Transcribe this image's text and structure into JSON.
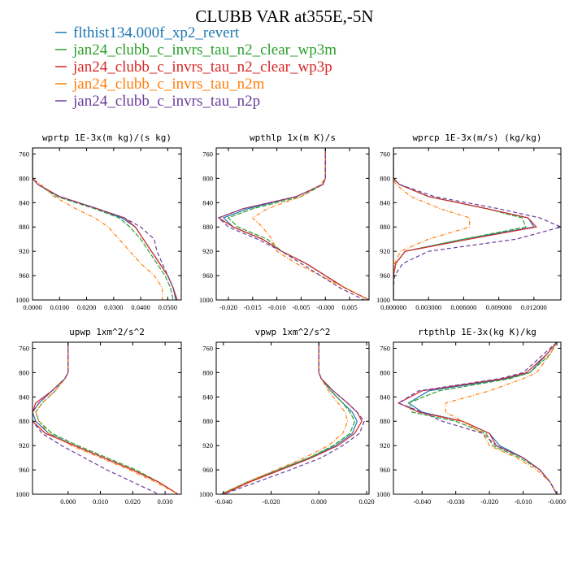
{
  "figure": {
    "title": "CLUBB VAR at355E,-5N",
    "legend": [
      {
        "name": "flthist134.000f_xp2_revert",
        "color": "#1f77b4",
        "dash": ""
      },
      {
        "name": "jan24_clubb_c_invrs_tau_n2_clear_wp3m",
        "color": "#2ca02c",
        "dash": "6,2"
      },
      {
        "name": "jan24_clubb_c_invrs_tau_n2_clear_wp3p",
        "color": "#d62728",
        "dash": ""
      },
      {
        "name": "jan24_clubb_c_invrs_tau_n2m",
        "color": "#ff7f0e",
        "dash": "5,2,1,2"
      },
      {
        "name": "jan24_clubb_c_invrs_tau_n2p",
        "color": "#6a3d9a",
        "dash": "5,3"
      }
    ]
  },
  "chart_data": [
    {
      "type": "line",
      "title": "wprtp  1E-3x(m kg)/(s kg)",
      "xlim": [
        0.0,
        0.055
      ],
      "ylim": [
        1000,
        750
      ],
      "xticks": [
        0.0,
        0.01,
        0.02,
        0.03,
        0.04,
        0.05
      ],
      "xtick_labels": [
        "0.0000",
        "0.0100",
        "0.0200",
        "0.0300",
        "0.0400",
        "0.0500"
      ],
      "yticks": [
        760,
        800,
        840,
        880,
        920,
        960,
        1000
      ],
      "ytick_labels": [
        "760",
        "800",
        "840",
        "880",
        "920",
        "960",
        "1000"
      ],
      "y": [
        750,
        800,
        810,
        830,
        850,
        865,
        880,
        900,
        920,
        940,
        960,
        980,
        1000
      ],
      "series": [
        {
          "values": [
            0.0,
            0.0,
            0.002,
            0.01,
            0.024,
            0.033,
            0.038,
            0.041,
            0.044,
            0.047,
            0.05,
            0.052,
            0.053
          ]
        },
        {
          "values": [
            0.0,
            0.0,
            0.002,
            0.009,
            0.023,
            0.032,
            0.036,
            0.04,
            0.043,
            0.046,
            0.049,
            0.051,
            0.052
          ]
        },
        {
          "values": [
            0.0,
            0.0,
            0.002,
            0.01,
            0.024,
            0.034,
            0.038,
            0.041,
            0.044,
            0.047,
            0.05,
            0.052,
            0.0535
          ]
        },
        {
          "values": [
            0.0,
            0.0,
            0.003,
            0.008,
            0.016,
            0.023,
            0.028,
            0.032,
            0.036,
            0.04,
            0.045,
            0.048,
            0.048
          ]
        },
        {
          "values": [
            0.0,
            0.0,
            0.002,
            0.01,
            0.024,
            0.034,
            0.04,
            0.045,
            0.046,
            0.048,
            0.05,
            0.052,
            0.053
          ]
        }
      ]
    },
    {
      "type": "line",
      "title": "wpthlp  1x(m K)/s",
      "xlim": [
        -0.0225,
        0.009
      ],
      "ylim": [
        1000,
        750
      ],
      "xticks": [
        -0.02,
        -0.015,
        -0.01,
        -0.005,
        0.0,
        0.005
      ],
      "xtick_labels": [
        "-0.020",
        "-0.015",
        "-0.010",
        "-0.005",
        "-0.000",
        "0.005"
      ],
      "yticks": [
        760,
        800,
        840,
        880,
        920,
        960,
        1000
      ],
      "ytick_labels": [
        "760",
        "800",
        "840",
        "880",
        "920",
        "960",
        "1000"
      ],
      "y": [
        750,
        800,
        810,
        830,
        850,
        865,
        880,
        900,
        920,
        940,
        960,
        980,
        1000
      ],
      "series": [
        {
          "values": [
            0.0,
            0.0,
            -0.0005,
            -0.006,
            -0.016,
            -0.021,
            -0.019,
            -0.013,
            -0.009,
            -0.004,
            0.0,
            0.004,
            0.009
          ]
        },
        {
          "values": [
            0.0,
            0.0,
            -0.0005,
            -0.005,
            -0.015,
            -0.02,
            -0.018,
            -0.012,
            -0.009,
            -0.004,
            0.0,
            0.004,
            0.009
          ]
        },
        {
          "values": [
            0.0,
            0.0,
            -0.0005,
            -0.006,
            -0.017,
            -0.022,
            -0.019,
            -0.013,
            -0.009,
            -0.004,
            0.0,
            0.004,
            0.009
          ]
        },
        {
          "values": [
            0.0,
            0.0,
            -0.001,
            -0.005,
            -0.012,
            -0.015,
            -0.013,
            -0.011,
            -0.01,
            -0.006,
            -0.001,
            0.004,
            0.009
          ]
        },
        {
          "values": [
            0.0,
            0.0,
            -0.0005,
            -0.006,
            -0.017,
            -0.022,
            -0.02,
            -0.014,
            -0.009,
            -0.005,
            -0.001,
            0.003,
            0.008
          ]
        }
      ]
    },
    {
      "type": "line",
      "title": "wprcp  1E-3x(m/s) (kg/kg)",
      "xlim": [
        0.0,
        0.0143
      ],
      "ylim": [
        1000,
        750
      ],
      "xticks": [
        0.0,
        0.003,
        0.006,
        0.009,
        0.012
      ],
      "xtick_labels": [
        "0.000000",
        "0.003000",
        "0.006000",
        "0.009000",
        "0.012000"
      ],
      "yticks": [
        760,
        800,
        840,
        880,
        920,
        960,
        1000
      ],
      "ytick_labels": [
        "760",
        "800",
        "840",
        "880",
        "920",
        "960",
        "1000"
      ],
      "y": [
        750,
        800,
        810,
        830,
        850,
        865,
        880,
        900,
        920,
        940,
        960,
        980,
        1000
      ],
      "series": [
        {
          "values": [
            0.0,
            0.0,
            0.0005,
            0.003,
            0.008,
            0.0115,
            0.012,
            0.006,
            0.001,
            0.0002,
            0.0,
            0.0,
            0.0
          ]
        },
        {
          "values": [
            0.0,
            0.0,
            0.0005,
            0.003,
            0.008,
            0.011,
            0.0113,
            0.006,
            0.001,
            0.0002,
            0.0,
            0.0,
            0.0
          ]
        },
        {
          "values": [
            0.0,
            0.0,
            0.0005,
            0.003,
            0.008,
            0.0115,
            0.0122,
            0.0065,
            0.001,
            0.0002,
            0.0,
            0.0,
            0.0
          ]
        },
        {
          "values": [
            0.0,
            0.0,
            0.0002,
            0.0015,
            0.004,
            0.0065,
            0.0065,
            0.003,
            0.0006,
            0.0001,
            0.0,
            0.0,
            0.0
          ]
        },
        {
          "values": [
            0.0,
            0.0,
            0.0005,
            0.0035,
            0.009,
            0.0125,
            0.0143,
            0.0105,
            0.003,
            0.0008,
            0.0001,
            0.0,
            0.0
          ]
        }
      ]
    },
    {
      "type": "line",
      "title": "upwp  1xm^2/s^2",
      "xlim": [
        -0.011,
        0.035
      ],
      "ylim": [
        1000,
        750
      ],
      "xticks": [
        0.0,
        0.01,
        0.02,
        0.03
      ],
      "xtick_labels": [
        "0.000",
        "0.010",
        "0.020",
        "0.030"
      ],
      "yticks": [
        760,
        800,
        840,
        880,
        920,
        960,
        1000
      ],
      "ytick_labels": [
        "760",
        "800",
        "840",
        "880",
        "920",
        "960",
        "1000"
      ],
      "y": [
        750,
        800,
        810,
        830,
        850,
        865,
        880,
        900,
        920,
        940,
        960,
        980,
        1000
      ],
      "series": [
        {
          "values": [
            0.0,
            0.0,
            -0.001,
            -0.005,
            -0.009,
            -0.011,
            -0.01,
            -0.006,
            0.002,
            0.011,
            0.02,
            0.028,
            0.034
          ]
        },
        {
          "values": [
            0.0,
            0.0,
            -0.001,
            -0.004,
            -0.008,
            -0.01,
            -0.009,
            -0.005,
            0.003,
            0.012,
            0.021,
            0.028,
            0.034
          ]
        },
        {
          "values": [
            0.0,
            0.0,
            -0.001,
            -0.005,
            -0.01,
            -0.011,
            -0.011,
            -0.007,
            0.002,
            0.011,
            0.02,
            0.028,
            0.034
          ]
        },
        {
          "values": [
            0.0,
            0.0,
            -0.001,
            -0.004,
            -0.008,
            -0.01,
            -0.009,
            -0.006,
            0.001,
            0.01,
            0.019,
            0.027,
            0.034
          ]
        },
        {
          "values": [
            0.0,
            0.0,
            -0.001,
            -0.005,
            -0.009,
            -0.011,
            -0.011,
            -0.008,
            -0.002,
            0.005,
            0.012,
            0.02,
            0.028
          ]
        }
      ]
    },
    {
      "type": "line",
      "title": "vpwp  1xm^2/s^2",
      "xlim": [
        -0.043,
        0.021
      ],
      "ylim": [
        1000,
        750
      ],
      "xticks": [
        -0.04,
        -0.02,
        0.0,
        0.02
      ],
      "xtick_labels": [
        "-0.040",
        "-0.020",
        "0.000",
        "0.020"
      ],
      "yticks": [
        760,
        800,
        840,
        880,
        920,
        960,
        1000
      ],
      "ytick_labels": [
        "760",
        "800",
        "840",
        "880",
        "920",
        "960",
        "1000"
      ],
      "y": [
        750,
        800,
        810,
        830,
        850,
        865,
        880,
        900,
        920,
        940,
        960,
        980,
        1000
      ],
      "series": [
        {
          "values": [
            0.0,
            0.0,
            0.001,
            0.005,
            0.01,
            0.014,
            0.016,
            0.014,
            0.007,
            -0.004,
            -0.017,
            -0.03,
            -0.041
          ]
        },
        {
          "values": [
            0.0,
            0.0,
            0.001,
            0.005,
            0.01,
            0.013,
            0.015,
            0.013,
            0.006,
            -0.004,
            -0.017,
            -0.03,
            -0.041
          ]
        },
        {
          "values": [
            0.0,
            0.0,
            0.001,
            0.006,
            0.012,
            0.016,
            0.018,
            0.015,
            0.008,
            -0.003,
            -0.016,
            -0.029,
            -0.04
          ]
        },
        {
          "values": [
            0.0,
            0.0,
            0.001,
            0.004,
            0.008,
            0.011,
            0.012,
            0.01,
            0.004,
            -0.006,
            -0.018,
            -0.03,
            -0.041
          ]
        },
        {
          "values": [
            0.0,
            0.0,
            0.001,
            0.006,
            0.012,
            0.016,
            0.019,
            0.017,
            0.01,
            0.001,
            -0.012,
            -0.026,
            -0.04
          ]
        }
      ]
    },
    {
      "type": "line",
      "title": "rtpthlp  1E-3x(kg K)/kg",
      "xlim": [
        -0.0485,
        0.0012
      ],
      "ylim": [
        1000,
        750
      ],
      "xticks": [
        -0.04,
        -0.03,
        -0.02,
        -0.01,
        0.0
      ],
      "xtick_labels": [
        "-0.040",
        "-0.030",
        "-0.020",
        "-0.010",
        "-0.000"
      ],
      "yticks": [
        760,
        800,
        840,
        880,
        920,
        960,
        1000
      ],
      "ytick_labels": [
        "760",
        "800",
        "840",
        "880",
        "920",
        "960",
        "1000"
      ],
      "y": [
        750,
        770,
        800,
        810,
        830,
        850,
        865,
        880,
        900,
        920,
        940,
        960,
        980,
        1000
      ],
      "series": [
        {
          "values": [
            0.0,
            -0.003,
            -0.008,
            -0.015,
            -0.038,
            -0.044,
            -0.04,
            -0.028,
            -0.02,
            -0.017,
            -0.01,
            -0.005,
            -0.002,
            0.0
          ]
        },
        {
          "values": [
            0.0,
            -0.002,
            -0.008,
            -0.014,
            -0.035,
            -0.044,
            -0.043,
            -0.03,
            -0.021,
            -0.019,
            -0.011,
            -0.005,
            -0.002,
            0.0
          ]
        },
        {
          "values": [
            0.0,
            -0.003,
            -0.009,
            -0.016,
            -0.04,
            -0.047,
            -0.041,
            -0.028,
            -0.02,
            -0.018,
            -0.01,
            -0.005,
            -0.002,
            0.0
          ]
        },
        {
          "values": [
            0.0,
            -0.002,
            -0.006,
            -0.01,
            -0.02,
            -0.033,
            -0.033,
            -0.028,
            -0.022,
            -0.02,
            -0.012,
            -0.006,
            -0.002,
            0.0
          ]
        },
        {
          "values": [
            0.0,
            -0.004,
            -0.01,
            -0.017,
            -0.041,
            -0.047,
            -0.04,
            -0.034,
            -0.022,
            -0.018,
            -0.01,
            -0.005,
            -0.002,
            0.0
          ]
        }
      ]
    }
  ]
}
